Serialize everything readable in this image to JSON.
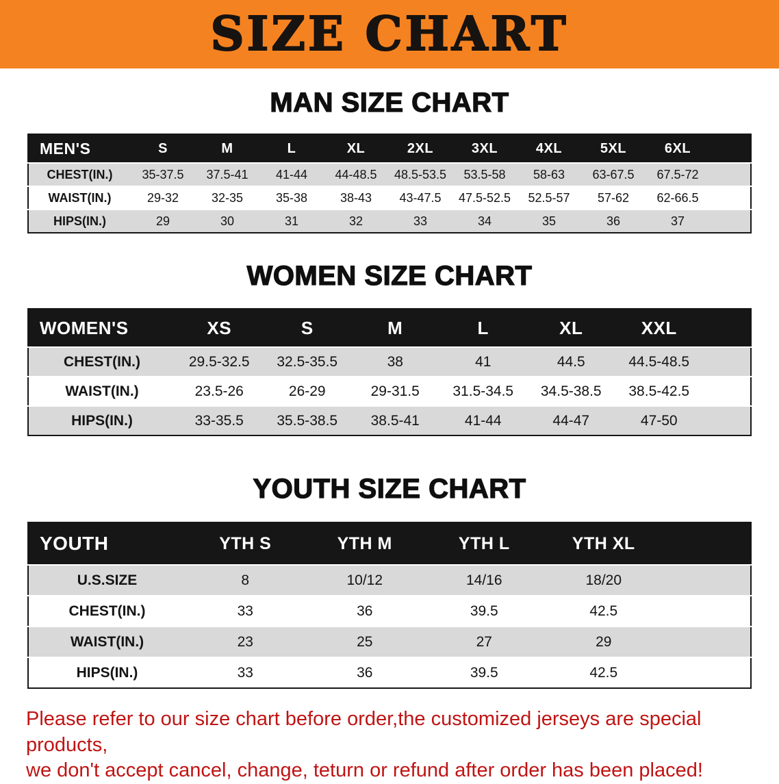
{
  "banner": {
    "title": "SIZE CHART"
  },
  "colors": {
    "banner_bg": "#f58220",
    "header_bg": "#161616",
    "row_alt": "#d9d9d9",
    "disclaimer_red": "#c01414"
  },
  "sections": [
    {
      "heading": "MAN SIZE CHART",
      "table": {
        "header": [
          "MEN'S",
          "S",
          "M",
          "L",
          "XL",
          "2XL",
          "3XL",
          "4XL",
          "5XL",
          "6XL"
        ],
        "rows": [
          [
            "CHEST(IN.)",
            "35-37.5",
            "37.5-41",
            "41-44",
            "44-48.5",
            "48.5-53.5",
            "53.5-58",
            "58-63",
            "63-67.5",
            "67.5-72"
          ],
          [
            "WAIST(IN.)",
            "29-32",
            "32-35",
            "35-38",
            "38-43",
            "43-47.5",
            "47.5-52.5",
            "52.5-57",
            "57-62",
            "62-66.5"
          ],
          [
            "HIPS(IN.)",
            "29",
            "30",
            "31",
            "32",
            "33",
            "34",
            "35",
            "36",
            "37"
          ]
        ]
      }
    },
    {
      "heading": "WOMEN SIZE CHART",
      "table": {
        "header": [
          "WOMEN'S",
          "XS",
          "S",
          "M",
          "L",
          "XL",
          "XXL"
        ],
        "rows": [
          [
            "CHEST(IN.)",
            "29.5-32.5",
            "32.5-35.5",
            "38",
            "41",
            "44.5",
            "44.5-48.5"
          ],
          [
            "WAIST(IN.)",
            "23.5-26",
            "26-29",
            "29-31.5",
            "31.5-34.5",
            "34.5-38.5",
            "38.5-42.5"
          ],
          [
            "HIPS(IN.)",
            "33-35.5",
            "35.5-38.5",
            "38.5-41",
            "41-44",
            "44-47",
            "47-50"
          ]
        ]
      }
    },
    {
      "heading": "YOUTH SIZE CHART",
      "table": {
        "header": [
          "YOUTH",
          "YTH S",
          "YTH M",
          "YTH L",
          "YTH XL"
        ],
        "rows": [
          [
            "U.S.SIZE",
            "8",
            "10/12",
            "14/16",
            "18/20"
          ],
          [
            "CHEST(IN.)",
            "33",
            "36",
            "39.5",
            "42.5"
          ],
          [
            "WAIST(IN.)",
            "23",
            "25",
            "27",
            "29"
          ],
          [
            "HIPS(IN.)",
            "33",
            "36",
            "39.5",
            "42.5"
          ]
        ]
      }
    }
  ],
  "disclaimer": {
    "line1": "Please refer to our size chart before order,the customized jerseys are special products,",
    "line2": "we don't accept cancel, change, teturn or refund after order has been placed!"
  }
}
